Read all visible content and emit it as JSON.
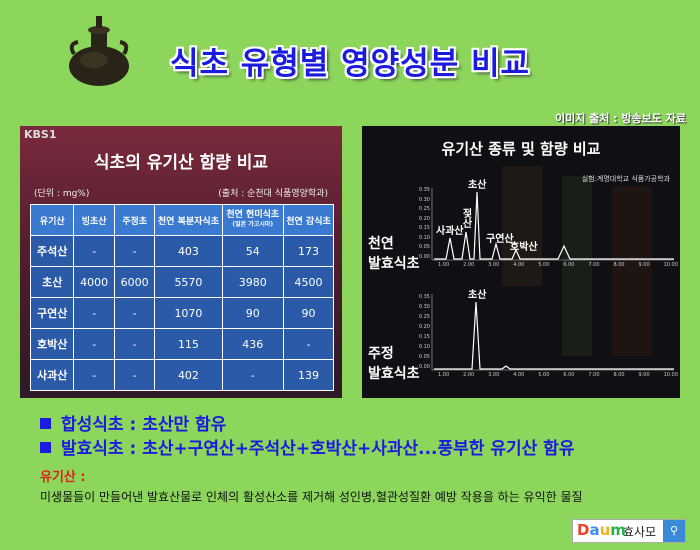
{
  "title": "식초 유형별 영양성분 비교",
  "source": "이미지 출처 : 방송보도 자료",
  "colors": {
    "background": "#8cd65c",
    "title": "#1a1ae0",
    "def_title": "#e02020"
  },
  "panel1": {
    "broadcaster": "KBS1",
    "title": "식초의 유기산 함량 비교",
    "unit": "(단위 : mg%)",
    "source": "(출처 : 순천대 식품영양학과)",
    "headers": [
      "유기산",
      "빙초산",
      "주정초",
      "천연 복분자식초",
      "천연 현미식초",
      "천연 감식초"
    ],
    "header_sub": "(일본 가고시마)",
    "rows": [
      {
        "name": "주석산",
        "cells": [
          "-",
          "-",
          "403",
          "54",
          "173"
        ]
      },
      {
        "name": "초산",
        "cells": [
          "4000",
          "6000",
          "5570",
          "3980",
          "4500"
        ]
      },
      {
        "name": "구연산",
        "cells": [
          "-",
          "-",
          "1070",
          "90",
          "90"
        ]
      },
      {
        "name": "호박산",
        "cells": [
          "-",
          "-",
          "115",
          "436",
          "-"
        ]
      },
      {
        "name": "사과산",
        "cells": [
          "-",
          "-",
          "402",
          "-",
          "139"
        ]
      }
    ]
  },
  "panel2": {
    "title": "유기산 종류 및 함량 비교",
    "source": "실험:계명대학교 식품가공학과",
    "label_natural": [
      "천연",
      "발효식초"
    ],
    "label_alcohol": [
      "주정",
      "발효식초"
    ],
    "peaks_natural": [
      "사과산",
      "젖산",
      "초산",
      "구연산",
      "호박산"
    ],
    "peak_alcohol": "초산",
    "yticks": [
      "0.35",
      "0.30",
      "0.25",
      "0.20",
      "0.15",
      "0.10",
      "0.05",
      "0.00"
    ],
    "xticks": [
      "1.00",
      "2.00",
      "3.00",
      "4.00",
      "5.00",
      "6.00",
      "7.00",
      "8.00",
      "9.00",
      "10.00"
    ]
  },
  "bullets": [
    "합성식초 : 초산만 함유",
    "발효식초 : 초산+구연산+주석산+호박산+사과산...풍부한 유기산 함유"
  ],
  "definition": {
    "term": "유기산 :",
    "text": "미생물들이 만들어낸 발효산물로 인체의 활성산소를 제거해 성인병,혈관성질환 예방 작용을 하는 유익한 물질"
  },
  "logo": {
    "brand": "Daum",
    "name": "효사모",
    "search_icon": "search-icon"
  }
}
